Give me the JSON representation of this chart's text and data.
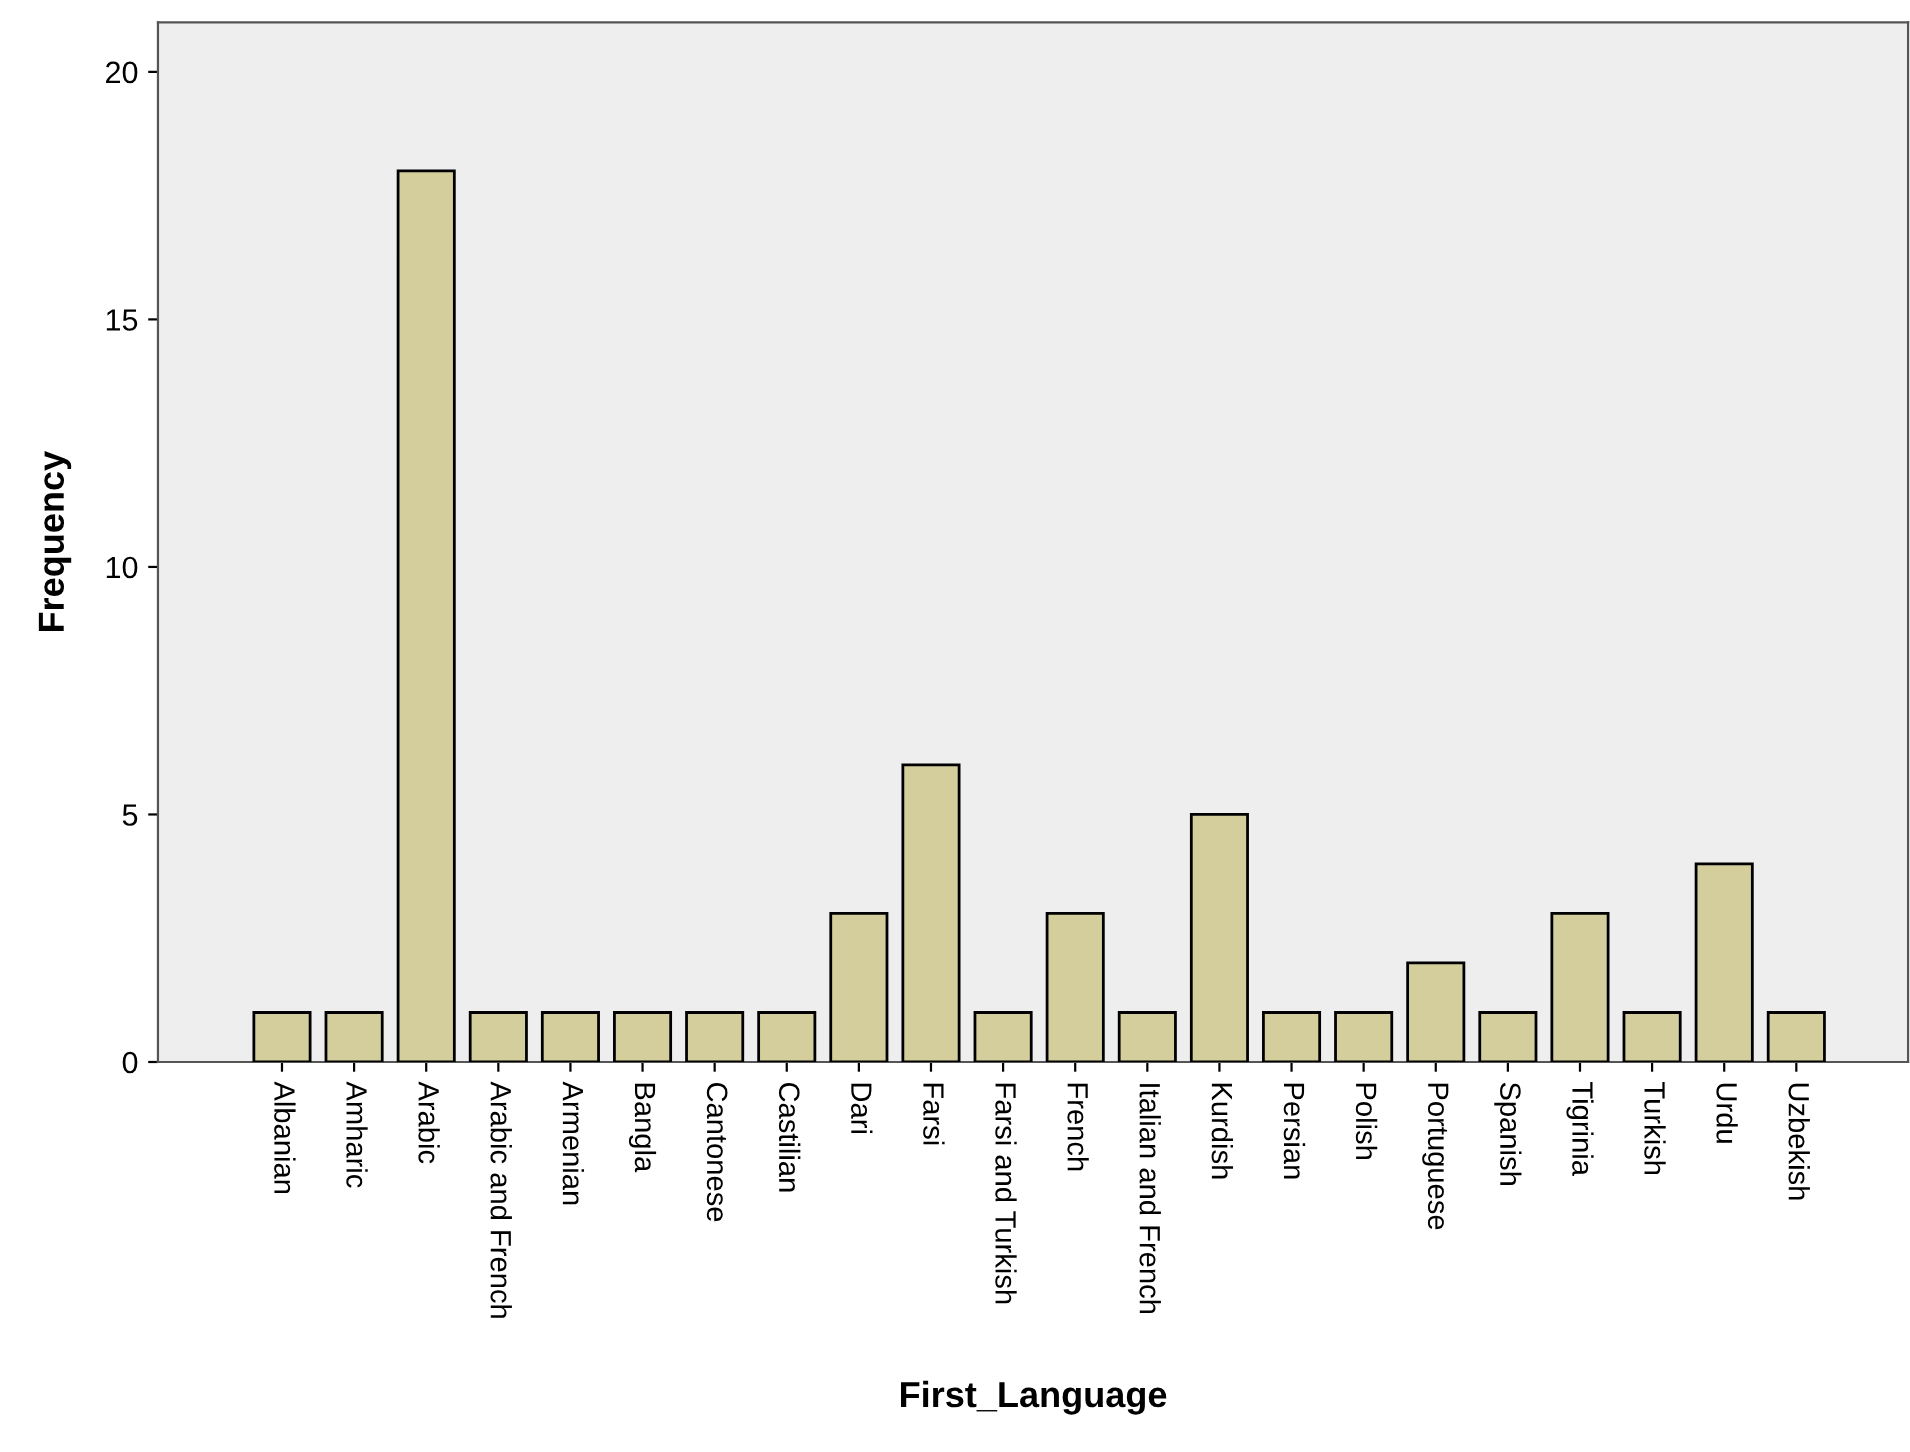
{
  "chart_data": {
    "type": "bar",
    "xlabel": "First_Language",
    "ylabel": "Frequency",
    "categories": [
      "Albanian",
      "Amharic",
      "Arabic",
      "Arabic and French",
      "Armenian",
      "Bangla",
      "Cantonese",
      "Castilian",
      "Dari",
      "Farsi",
      "Farsi and Turkish",
      "French",
      "Italian and French",
      "Kurdish",
      "Persian",
      "Polish",
      "Portuguese",
      "Spanish",
      "Tigrinia",
      "Turkish",
      "Urdu",
      "Uzbekish"
    ],
    "values": [
      1,
      1,
      18,
      1,
      1,
      1,
      1,
      1,
      3,
      6,
      1,
      3,
      1,
      5,
      1,
      1,
      2,
      1,
      3,
      1,
      4,
      1
    ],
    "color": "#d3ce9c",
    "ylim": [
      0,
      21
    ],
    "yticks": [
      0,
      5,
      10,
      15,
      20
    ],
    "grid": false,
    "legend": false
  }
}
